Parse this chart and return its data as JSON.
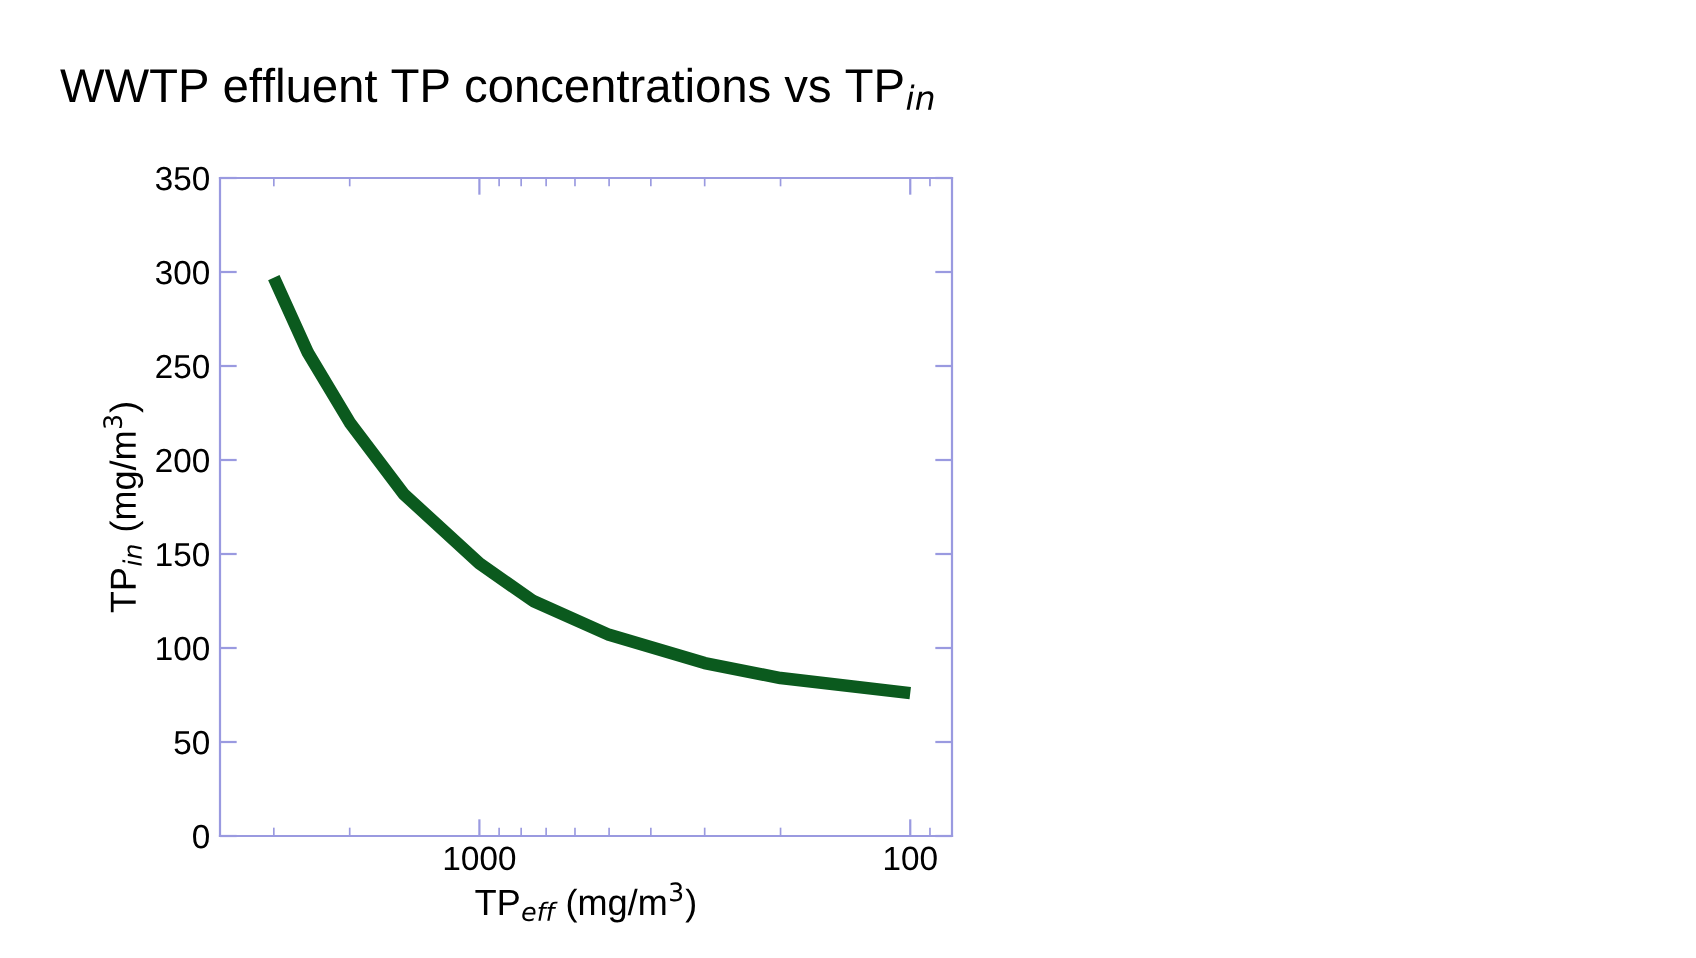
{
  "chart_data": {
    "type": "line",
    "title": "WWTP effluent TP concentrations vs TP$_{in}$",
    "xlabel": "TP$_{eff}$ (mg/m$^{3}$)",
    "ylabel": "TP$_{in}$ (mg/m$^{3}$)",
    "log": "x",
    "series": [
      {
        "color": "#0b5a1e",
        "x": [
          3000,
          2500,
          2000,
          1500,
          1000,
          750,
          500,
          300,
          200,
          100
        ],
        "values": [
          297,
          257,
          220,
          182,
          145,
          125,
          107,
          92,
          84,
          76
        ]
      }
    ],
    "xlim": [
      4000,
      80
    ],
    "ylim": [
      0,
      350
    ],
    "xticks": [
      {
        "value": 3000,
        "label": null
      },
      {
        "value": 2000,
        "label": null
      },
      1000,
      {
        "value": 900,
        "label": null
      },
      {
        "value": 800,
        "label": null
      },
      {
        "value": 700,
        "label": null
      },
      {
        "value": 600,
        "label": null
      },
      {
        "value": 500,
        "label": null
      },
      {
        "value": 400,
        "label": null
      },
      {
        "value": 300,
        "label": null
      },
      {
        "value": 200,
        "label": null
      },
      100,
      {
        "value": 90,
        "label": null
      }
    ],
    "yticks": [
      0,
      50,
      100,
      150,
      200,
      250,
      300,
      350
    ],
    "grid": false,
    "legend": false,
    "marker": "none",
    "line_style": "solid"
  }
}
